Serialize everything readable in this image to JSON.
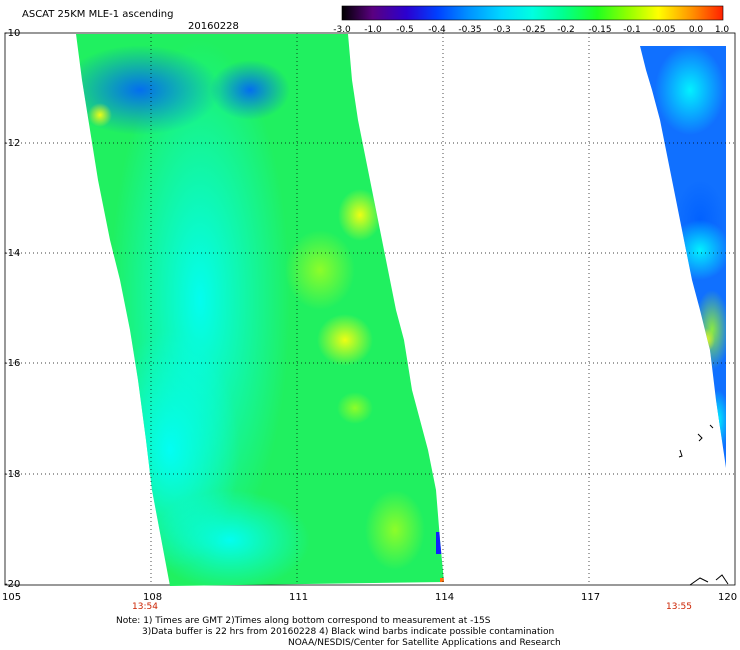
{
  "header": {
    "title": "ASCAT 25KM MLE-1 ascending",
    "date": "20160228"
  },
  "colorbar": {
    "labels": [
      "-3.0",
      "-1.0",
      "-0.5",
      "-0.4",
      "-0.35",
      "-0.3",
      "-0.25",
      "-0.2",
      "-0.15",
      "-0.1",
      "-0.05",
      "0.0",
      "1.0"
    ],
    "colors": [
      "#000000",
      "#5a0080",
      "#2b00d0",
      "#0040ff",
      "#0090ff",
      "#00d8ff",
      "#00ffe0",
      "#00ff90",
      "#20ff20",
      "#90ff00",
      "#ffff00",
      "#ff9000",
      "#ff2000"
    ]
  },
  "axes": {
    "lat_labels": [
      "-10",
      "-12",
      "-14",
      "-16",
      "-18",
      "-20"
    ],
    "lon_labels": [
      "105",
      "108",
      "111",
      "114",
      "117",
      "120"
    ]
  },
  "pass_times": [
    "13:54",
    "13:55"
  ],
  "footer": {
    "line1": "Note: 1) Times are GMT 2)Times along bottom correspond to measurement at -15S",
    "line2": "3)Data buffer is 22 hrs from 20160228 4) Black wind barbs indicate possible contamination",
    "line3": "NOAA/NESDIS/Center for Satellite Applications and Research"
  }
}
